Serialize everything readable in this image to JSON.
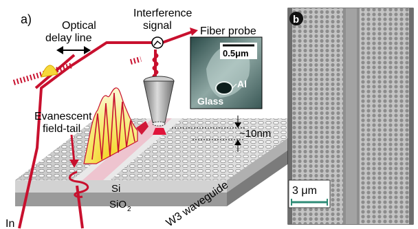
{
  "panel_a": {
    "panel_label": "a)",
    "optical_delay_line": [
      "Optical",
      "delay line"
    ],
    "interference_signal": [
      "Interference",
      "signal"
    ],
    "fiber_probe": "Fiber probe",
    "inset": {
      "scale": "0.5μm",
      "al": "Al",
      "glass": "Glass"
    },
    "evanescent": [
      "Evanescent",
      "field-tail"
    ],
    "gap": "~10nm",
    "si": "Si",
    "sio2_main": "SiO",
    "sio2_sub": "2",
    "waveguide": "W3 waveguide",
    "input": "In"
  },
  "panel_b": {
    "panel_label": "b",
    "scale_bar": "3 μm"
  },
  "colors": {
    "beam": "#c8102e",
    "field_yellow": "#f6e03a",
    "scale_teal": "#2e8b76",
    "sem_bg": "#b4b4b4",
    "hole": "#8a8a8a"
  }
}
